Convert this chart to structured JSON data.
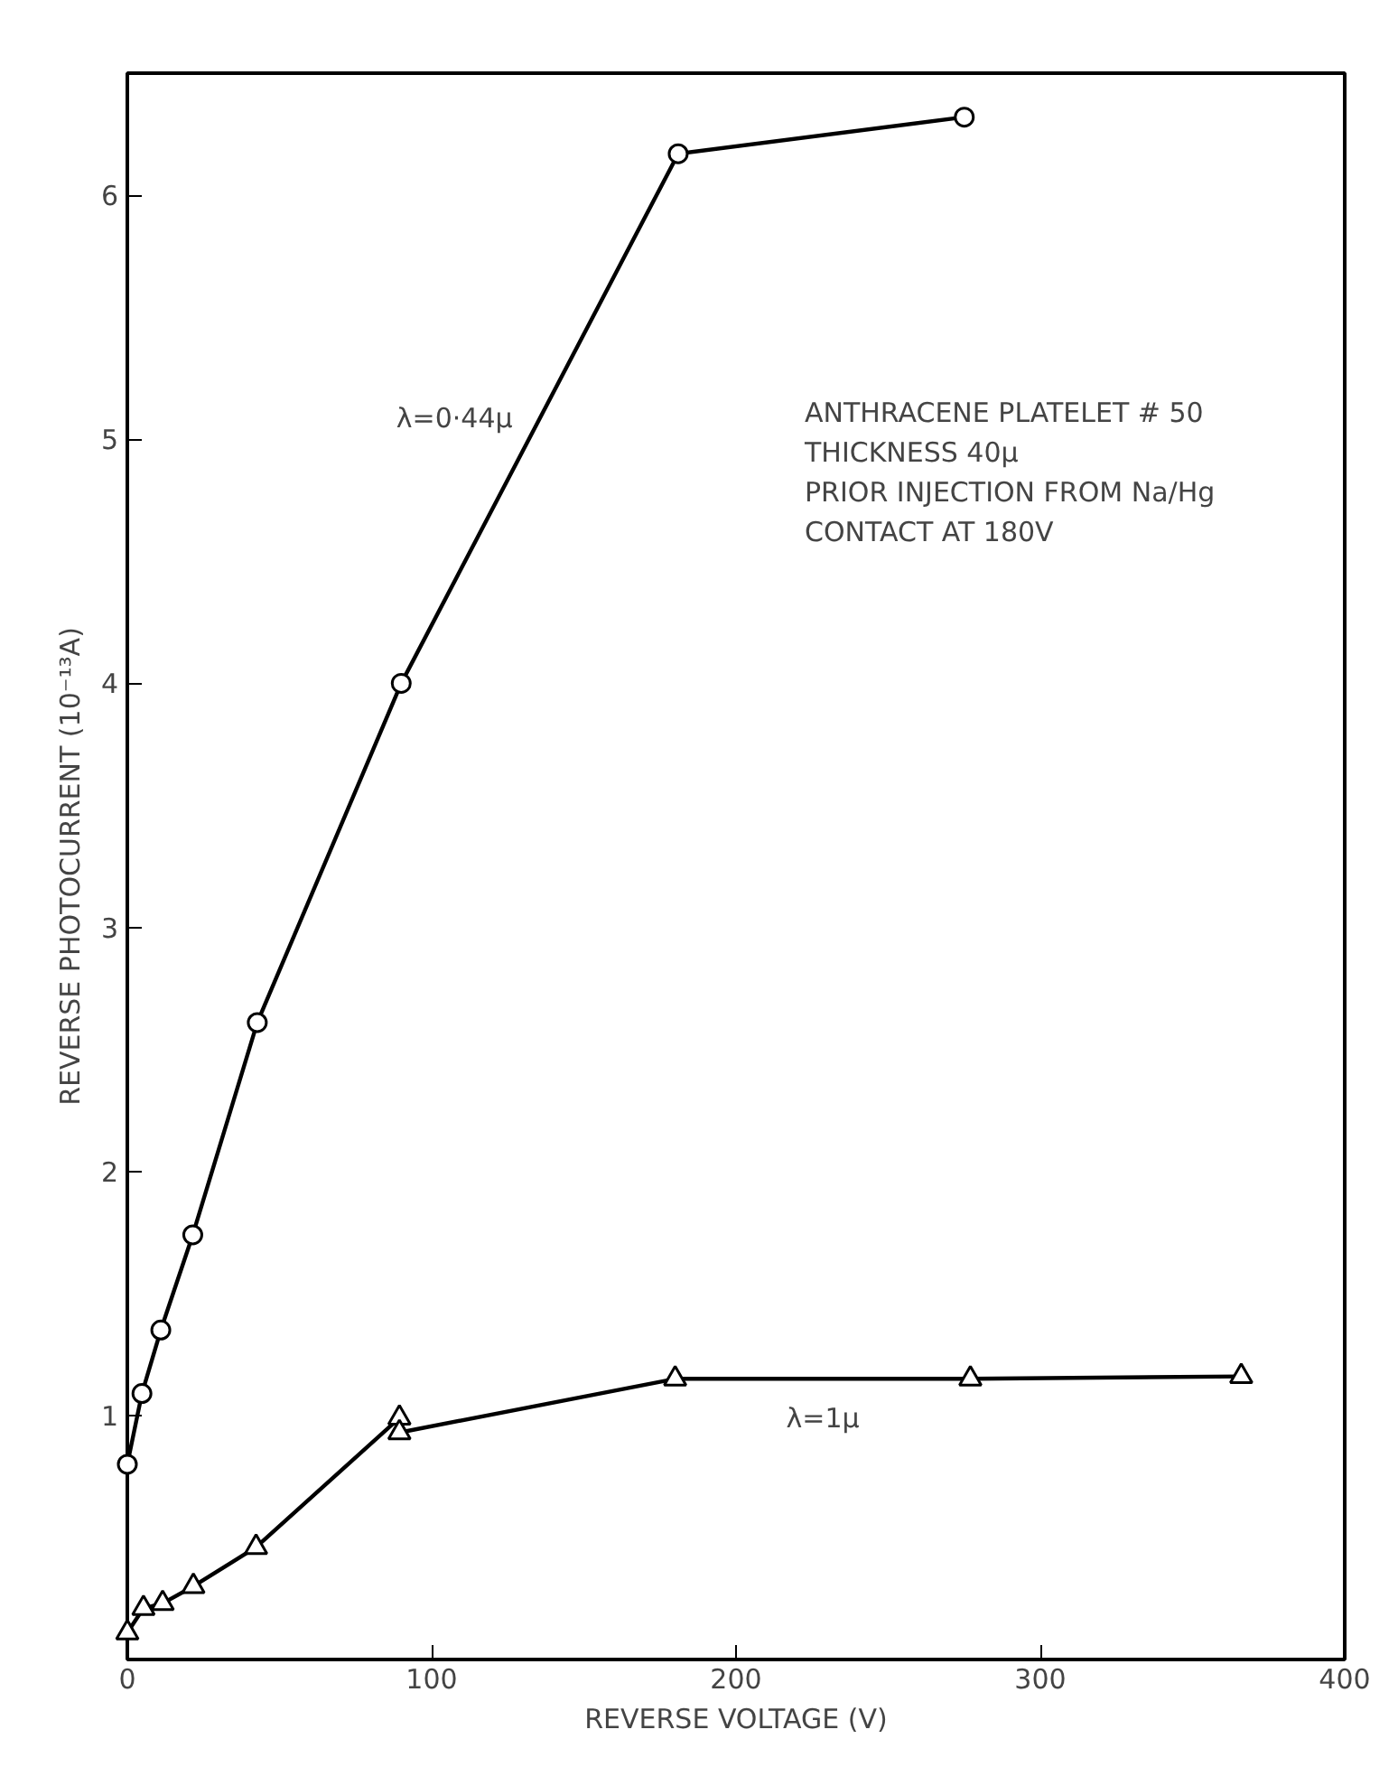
{
  "chart_data": {
    "type": "line",
    "xlabel": "REVERSE VOLTAGE (V)",
    "ylabel": "REVERSE PHOTOCURRENT (10⁻¹³A)",
    "xlim": [
      0,
      400
    ],
    "xticks": [
      0,
      100,
      200,
      300,
      400
    ],
    "ylim": [
      0,
      6.5
    ],
    "yticks": [
      1,
      2,
      3,
      4,
      5,
      6
    ],
    "grid": false,
    "line_style": "solid",
    "series": [
      {
        "name": "λ=0·44μ",
        "color": "#000000",
        "marker": "circle",
        "x": [
          0,
          4.8,
          11,
          21.5,
          42.7,
          90,
          181,
          275
        ],
        "values": [
          0.8,
          1.09,
          1.35,
          1.74,
          2.61,
          4.0,
          6.17,
          6.32
        ]
      },
      {
        "name": "λ=1μ",
        "color": "#000000",
        "marker": "triangle",
        "x": [
          0,
          5.3,
          11.6,
          21.7,
          42.3,
          89.4,
          89.4,
          180,
          277,
          366
        ],
        "values": [
          0.11,
          0.21,
          0.23,
          0.3,
          0.46,
          0.99,
          0.93,
          1.15,
          1.15,
          1.16
        ]
      }
    ],
    "annotations": [
      "ANTHRACENE PLATELET # 50",
      "THICKNESS 40μ",
      "PRIOR INJECTION FROM Na/Hg",
      "CONTACT AT 180V"
    ]
  }
}
